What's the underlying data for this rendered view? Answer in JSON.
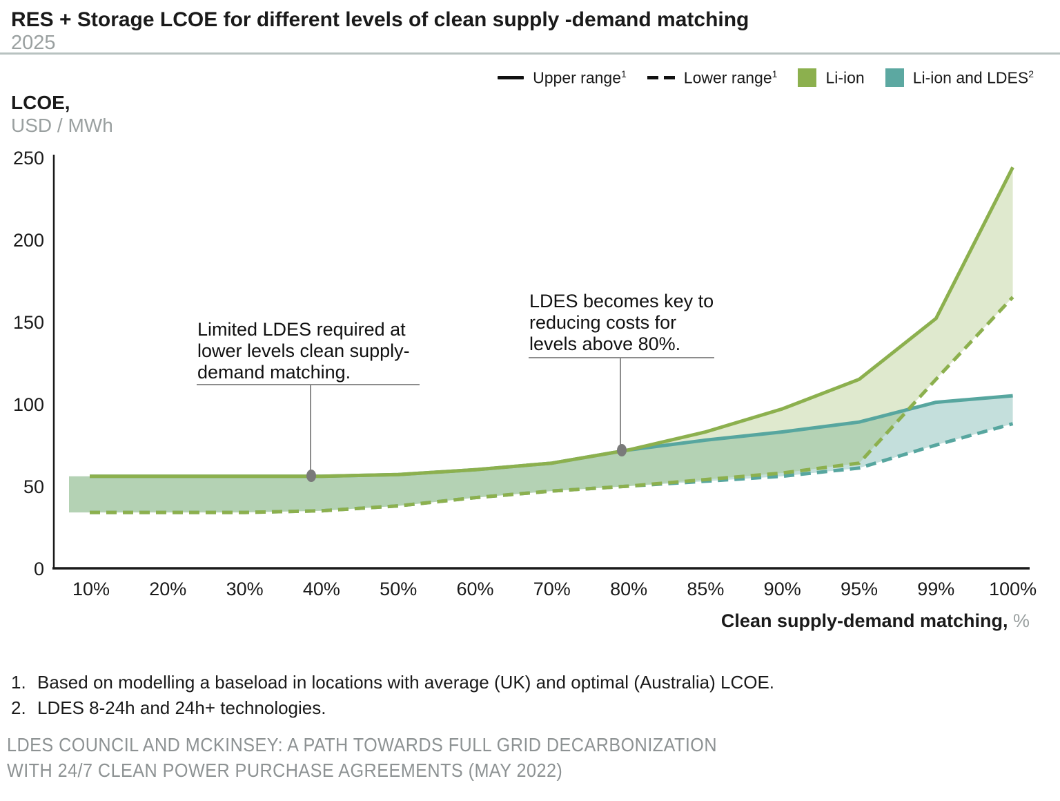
{
  "header": {
    "title": "RES + Storage LCOE for different levels of clean supply -demand matching",
    "subtitle": "2025"
  },
  "legend": [
    {
      "label": "Upper range",
      "sup": "1",
      "swatch": "solid-line"
    },
    {
      "label": "Lower range",
      "sup": "1",
      "swatch": "dashed-line"
    },
    {
      "label": "Li-ion",
      "sup": "",
      "swatch": "green-square"
    },
    {
      "label": "Li-ion and LDES",
      "sup": "2",
      "swatch": "teal-square"
    }
  ],
  "y_axis": {
    "name": "LCOE,",
    "unit": "USD / MWh"
  },
  "x_axis": {
    "title": "Clean supply-demand matching,",
    "unit": " %"
  },
  "annotations": [
    {
      "text": "Limited LDES required at\nlower levels clean supply-\ndemand matching."
    },
    {
      "text": "LDES becomes key to\nreducing costs for\nlevels above 80%."
    }
  ],
  "footnotes": [
    {
      "num": "1.",
      "text": "Based on modelling a baseload in locations with average (UK) and optimal (Australia) LCOE."
    },
    {
      "num": "2.",
      "text": "LDES 8-24h and 24h+ technologies."
    }
  ],
  "source": "LDES COUNCIL AND MCKINSEY: A PATH TOWARDS FULL GRID DECARBONIZATION\nWITH 24/7 CLEAN POWER PURCHASE AGREEMENTS (MAY 2022)",
  "colors": {
    "green_line": "#8CB04E",
    "green_fill": "rgba(140,176,78,0.28)",
    "teal_line": "#57A69F",
    "teal_fill": "rgba(85,162,155,0.35)",
    "annotation_gray": "#8c8c8c",
    "marker_gray": "#7a7a7a",
    "axis_black": "#1a1a1a"
  },
  "chart_data": {
    "type": "line",
    "title": "RES + Storage LCOE for different levels of clean supply-demand matching, 2025",
    "xlabel": "Clean supply-demand matching, %",
    "ylabel": "LCOE, USD / MWh",
    "ylim": [
      0,
      250
    ],
    "y_ticks": [
      0,
      50,
      100,
      150,
      200,
      250
    ],
    "grid": false,
    "legend_position": "top-right",
    "categories": [
      "10%",
      "20%",
      "30%",
      "40%",
      "50%",
      "60%",
      "70%",
      "80%",
      "85%",
      "90%",
      "95%",
      "99%",
      "100%"
    ],
    "series": [
      {
        "id": "liion_upper",
        "name": "Li-ion — Upper range",
        "style": "solid",
        "values": [
          56,
          56,
          56,
          56,
          57,
          60,
          64,
          72,
          83,
          97,
          115,
          152,
          244
        ]
      },
      {
        "id": "liion_lower",
        "name": "Li-ion — Lower range",
        "style": "dashed",
        "values": [
          34,
          34,
          34,
          35,
          38,
          43,
          47,
          50,
          54,
          58,
          64,
          115,
          165
        ]
      },
      {
        "id": "ldes_upper",
        "name": "Li-ion and LDES — Upper range",
        "style": "solid",
        "values": [
          56,
          56,
          56,
          56,
          57,
          60,
          64,
          72,
          78,
          83,
          89,
          101,
          105
        ]
      },
      {
        "id": "ldes_lower",
        "name": "Li-ion and LDES — Lower range",
        "style": "dashed",
        "values": [
          34,
          34,
          34,
          35,
          38,
          43,
          47,
          50,
          53,
          56,
          61,
          75,
          88
        ]
      }
    ],
    "annotated_points": [
      {
        "category": "40%",
        "series": "liion_upper",
        "value": 56
      },
      {
        "category": "80%",
        "series": "liion_upper",
        "value": 72
      }
    ]
  }
}
